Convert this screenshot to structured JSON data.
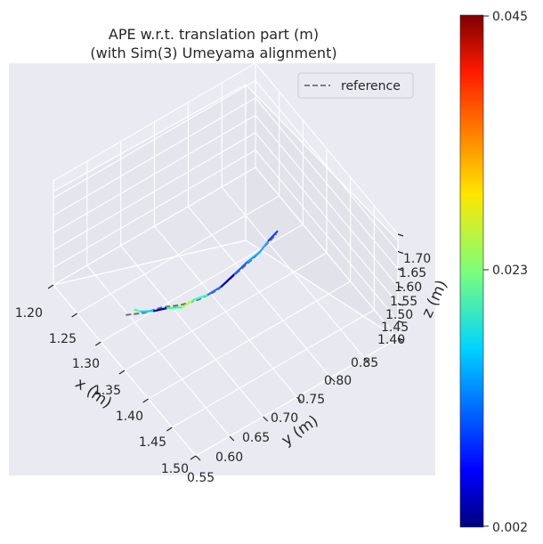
{
  "chart_data": {
    "type": "line",
    "projection": "3d",
    "title_line1": "APE w.r.t. translation part (m)",
    "title_line2": "(with Sim(3) Umeyama alignment)",
    "legend": {
      "label": "reference",
      "placement": "top-right",
      "style": "dashed gray"
    },
    "axes": {
      "x": {
        "label": "x (m)",
        "ticks": [
          "1.20",
          "1.25",
          "1.30",
          "1.35",
          "1.40",
          "1.45",
          "1.50"
        ],
        "range": [
          1.2,
          1.5
        ]
      },
      "y": {
        "label": "y (m)",
        "ticks": [
          "0.55",
          "0.60",
          "0.65",
          "0.70",
          "0.75",
          "0.80",
          "0.85"
        ],
        "range": [
          0.55,
          0.85
        ]
      },
      "z": {
        "label": "z (m)",
        "ticks": [
          "1.40",
          "1.45",
          "1.50",
          "1.55",
          "1.60",
          "1.65",
          "1.70"
        ],
        "range": [
          1.4,
          1.7
        ]
      }
    },
    "grid": true,
    "reference": {
      "x": [
        1.31,
        1.32,
        1.33,
        1.34,
        1.35,
        1.36,
        1.37,
        1.38,
        1.39,
        1.4
      ],
      "y": [
        0.58,
        0.6,
        0.62,
        0.64,
        0.66,
        0.68,
        0.7,
        0.72,
        0.73,
        0.74
      ],
      "z": [
        1.46,
        1.46,
        1.47,
        1.47,
        1.48,
        1.5,
        1.54,
        1.58,
        1.62,
        1.66
      ]
    },
    "trajectory_colors": [
      "#44ffb4",
      "#00d4ff",
      "#0000cd",
      "#33ff99",
      "#aaff4d",
      "#2fffc7",
      "#1e6bff",
      "#0000b2",
      "#1a5cff",
      "#00a8ff",
      "#2aa6ff",
      "#0a40ff"
    ],
    "colorbar": {
      "colormap": "jet",
      "ticks": [
        "0.045",
        "0.023",
        "0.002"
      ],
      "min": 0.002,
      "max": 0.045
    }
  }
}
